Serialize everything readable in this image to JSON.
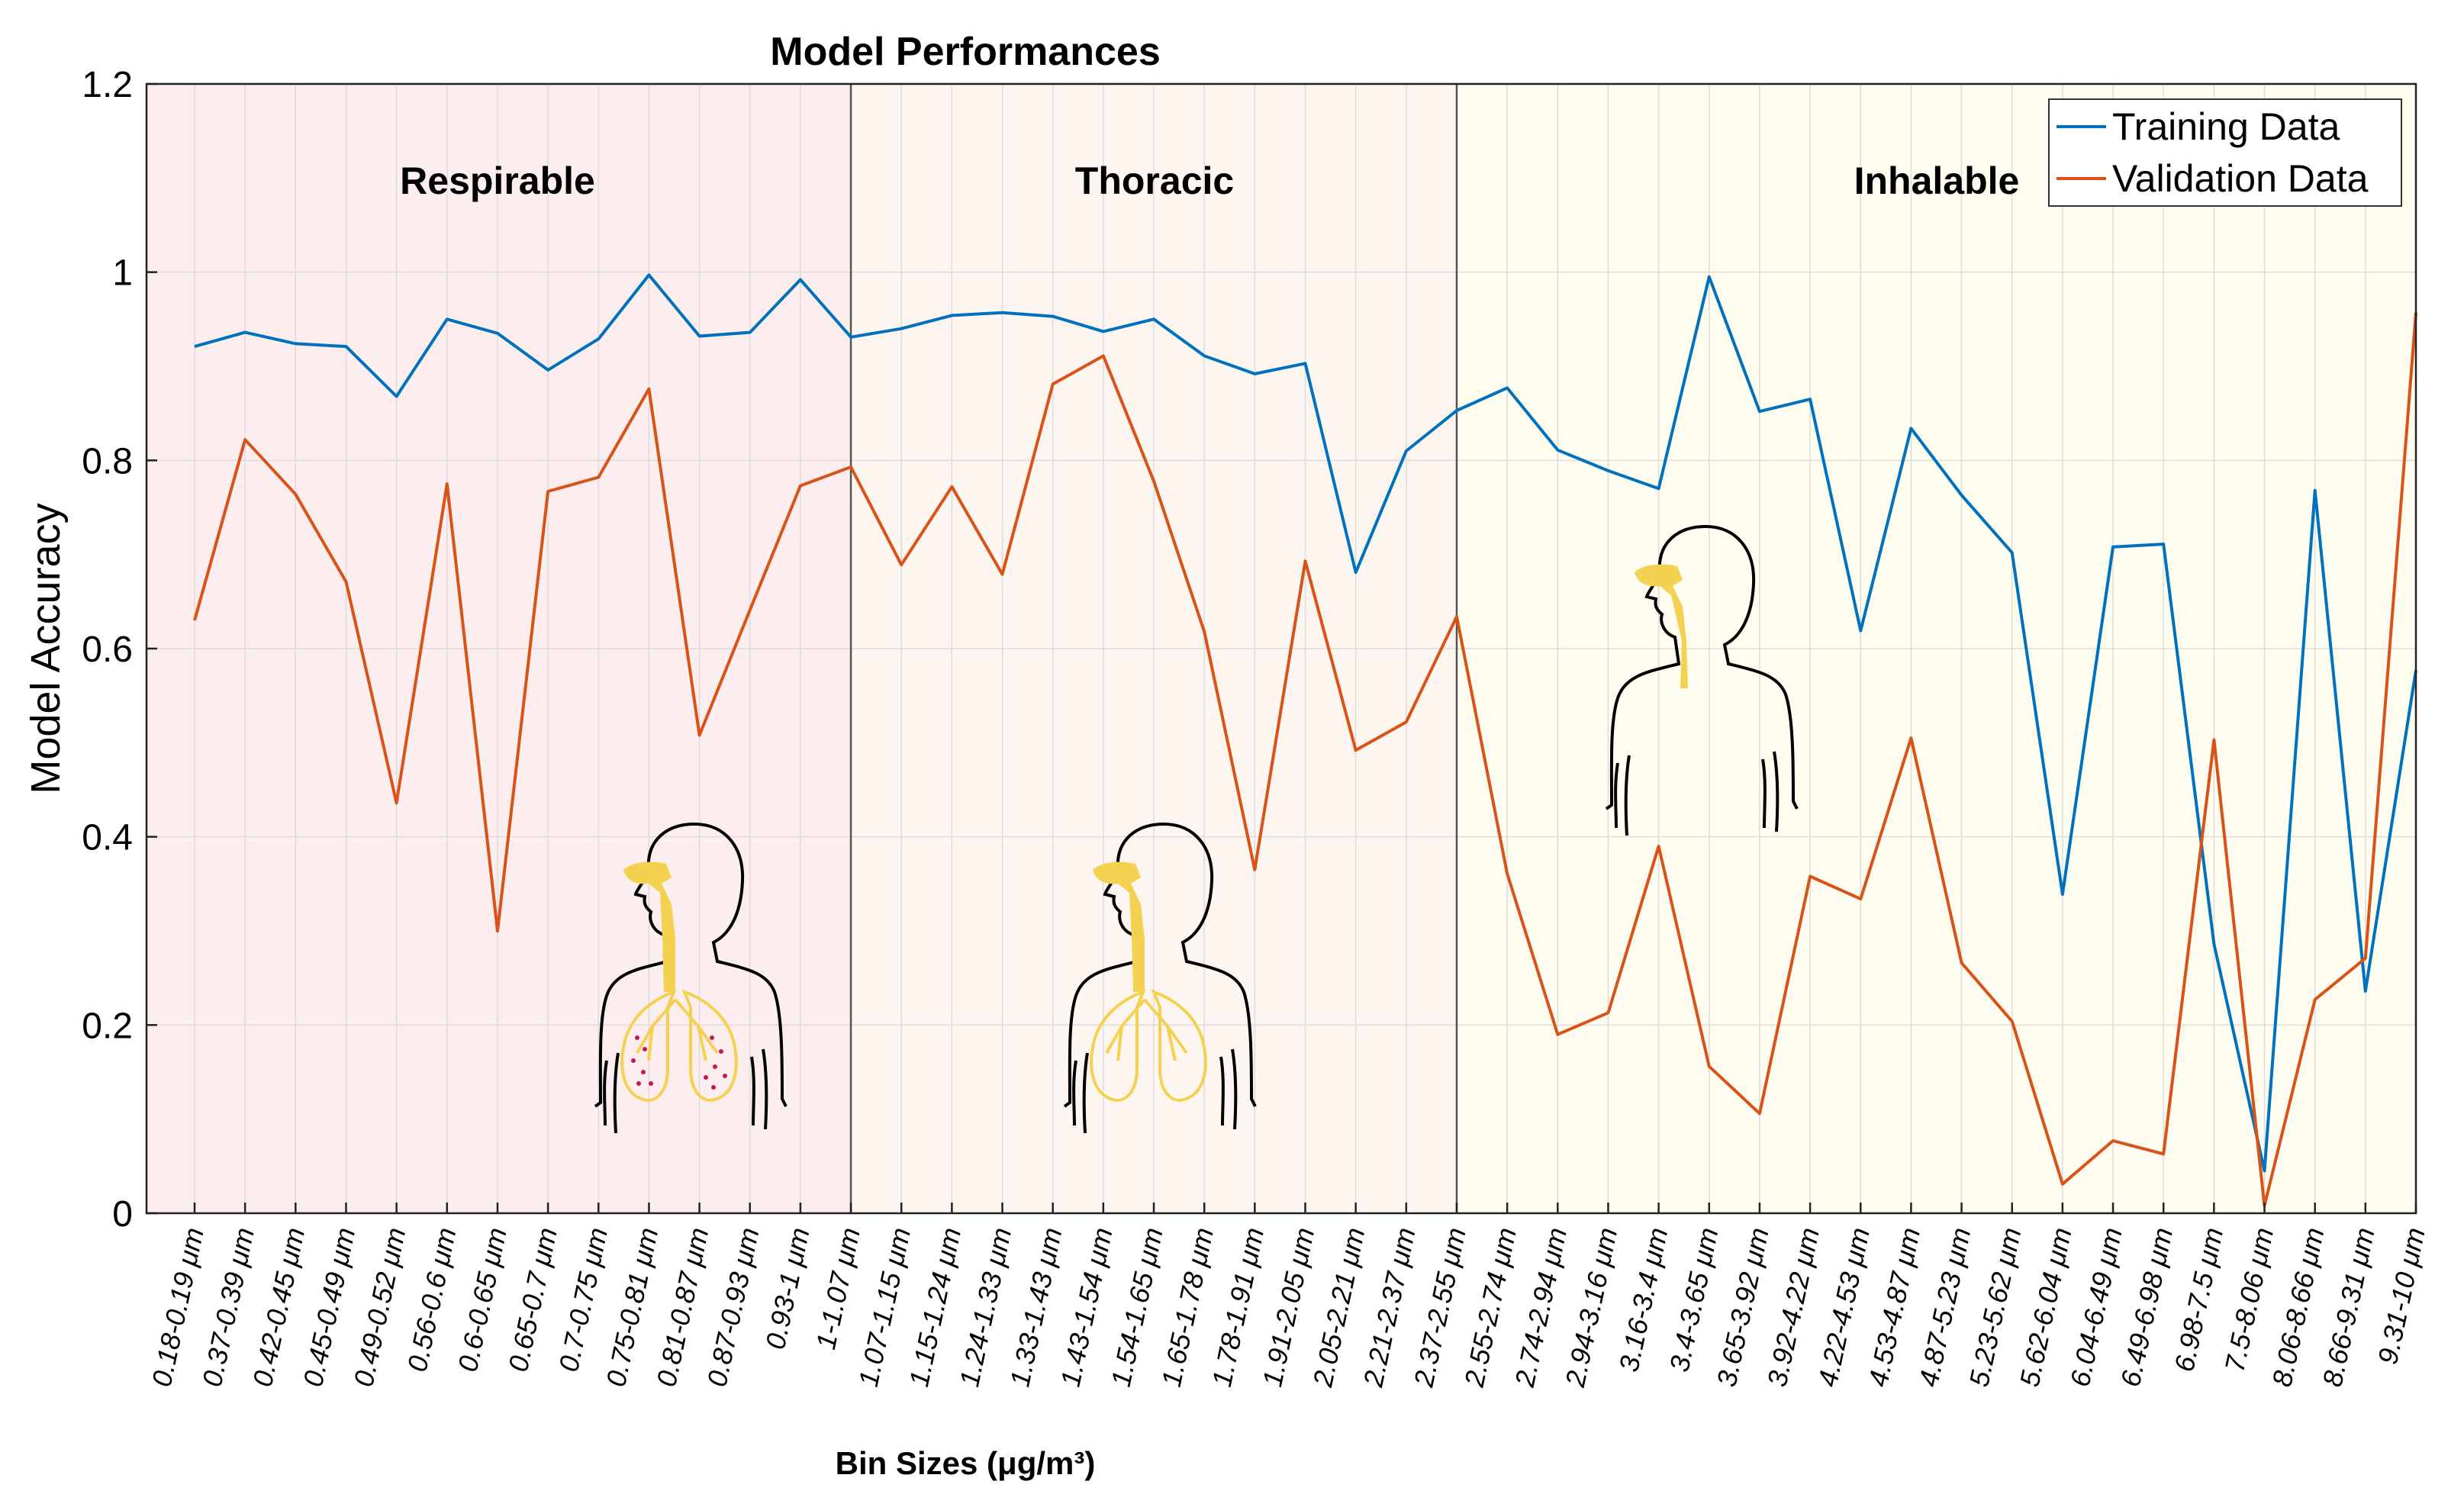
{
  "chart_data": {
    "type": "line",
    "title": "Model Performances",
    "ylabel": "Model Accuracy",
    "xlabel": "Bin Sizes (μg/m³)",
    "ylim": [
      0,
      1.2
    ],
    "yticks": [
      0,
      0.2,
      0.4,
      0.6,
      0.8,
      1,
      1.2
    ],
    "grid": true,
    "legend_position": "top-right",
    "categories": [
      "0.18-0.19 μm",
      "0.37-0.39 μm",
      "0.42-0.45 μm",
      "0.45-0.49 μm",
      "0.49-0.52 μm",
      "0.56-0.6 μm",
      "0.6-0.65 μm",
      "0.65-0.7 μm",
      "0.7-0.75 μm",
      "0.75-0.81 μm",
      "0.81-0.87 μm",
      "0.87-0.93 μm",
      "0.93-1 μm",
      "1-1.07 μm",
      "1.07-1.15 μm",
      "1.15-1.24 μm",
      "1.24-1.33 μm",
      "1.33-1.43 μm",
      "1.43-1.54 μm",
      "1.54-1.65 μm",
      "1.65-1.78 μm",
      "1.78-1.91 μm",
      "1.91-2.05 μm",
      "2.05-2.21 μm",
      "2.21-2.37 μm",
      "2.37-2.55 μm",
      "2.55-2.74 μm",
      "2.74-2.94 μm",
      "2.94-3.16 μm",
      "3.16-3.4 μm",
      "3.4-3.65 μm",
      "3.65-3.92 μm",
      "3.92-4.22 μm",
      "4.22-4.53 μm",
      "4.53-4.87 μm",
      "4.87-5.23 μm",
      "5.23-5.62 μm",
      "5.62-6.04 μm",
      "6.04-6.49 μm",
      "6.49-6.98 μm",
      "6.98-7.5 μm",
      "7.5-8.06 μm",
      "8.06-8.66 μm",
      "8.66-9.31 μm",
      "9.31-10 μm"
    ],
    "series": [
      {
        "name": "Training Data",
        "color": "#0072BD",
        "values": [
          0.921,
          0.936,
          0.924,
          0.921,
          0.868,
          0.95,
          0.935,
          0.896,
          0.929,
          0.997,
          0.932,
          0.936,
          0.992,
          0.931,
          0.94,
          0.954,
          0.957,
          0.953,
          0.937,
          0.95,
          0.911,
          0.892,
          0.903,
          0.681,
          0.81,
          0.853,
          0.877,
          0.811,
          0.789,
          0.77,
          0.995,
          0.852,
          0.865,
          0.619,
          0.834,
          0.763,
          0.702,
          0.339,
          0.708,
          0.711,
          0.286,
          0.045,
          0.768,
          0.236,
          0.577
        ]
      },
      {
        "name": "Validation Data",
        "color": "#D95319",
        "values": [
          0.63,
          0.822,
          0.764,
          0.671,
          0.436,
          0.775,
          0.3,
          0.767,
          0.782,
          0.876,
          0.508,
          0.641,
          0.773,
          0.793,
          0.689,
          0.772,
          0.679,
          0.881,
          0.911,
          0.778,
          0.618,
          0.365,
          0.693,
          0.492,
          0.522,
          0.634,
          0.361,
          0.19,
          0.213,
          0.39,
          0.156,
          0.106,
          0.358,
          0.334,
          0.505,
          0.266,
          0.204,
          0.031,
          0.077,
          0.063,
          0.503,
          0.008,
          0.227,
          0.271,
          0.957
        ]
      }
    ],
    "regions": [
      {
        "name": "Respirable",
        "from_index": 0,
        "to_index": 13,
        "color": "#FCEDEE"
      },
      {
        "name": "Thoracic",
        "from_index": 13,
        "to_index": 25,
        "color": "#FDF6F0"
      },
      {
        "name": "Inhalable",
        "from_index": 25,
        "to_index": 44,
        "color": "#FEFDF0"
      }
    ]
  },
  "colors": {
    "airway": "#F5D152",
    "lung_outline": "#F5D152",
    "particles": "#C2185B",
    "divider": "#555555"
  }
}
